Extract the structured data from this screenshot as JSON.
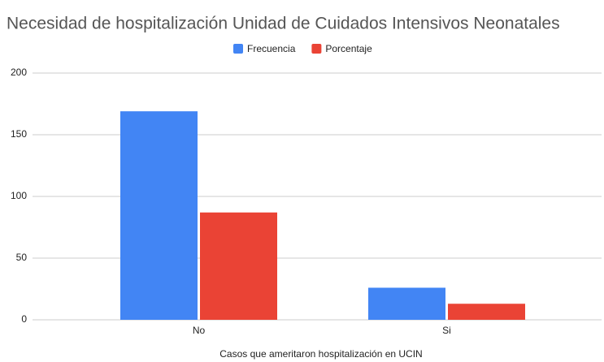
{
  "chart_data": {
    "type": "bar",
    "title": "Necesidad de hospitalización Unidad de Cuidados Intensivos Neonatales",
    "x_label": "Casos que ameritaron hospitalización en UCIN",
    "categories": [
      "No",
      "Si"
    ],
    "series": [
      {
        "name": "Frecuencia",
        "color": "#4285f4",
        "values": [
          169,
          26
        ]
      },
      {
        "name": "Porcentaje",
        "color": "#ea4335",
        "values": [
          87,
          13
        ]
      }
    ],
    "ylim": [
      0,
      200
    ],
    "yticks": [
      0,
      50,
      100,
      150,
      200
    ],
    "grid": true,
    "legend": "top"
  }
}
